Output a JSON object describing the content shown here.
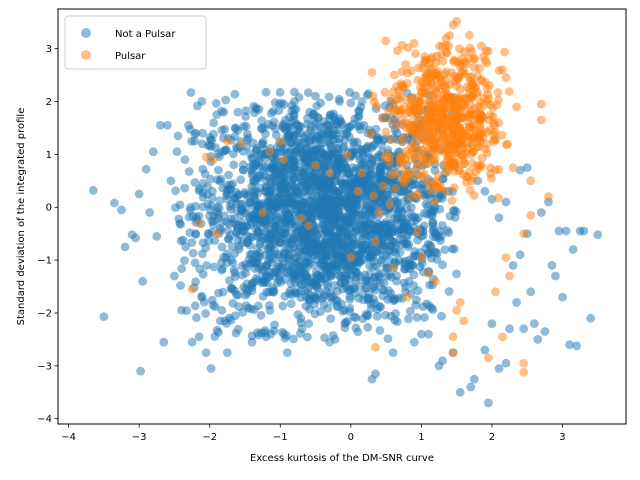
{
  "chart_data": {
    "type": "scatter",
    "title": "",
    "xlabel": "Excess kurtosis of the DM-SNR curve",
    "ylabel": "Standard deviation of the integrated profile",
    "xlim": [
      -4.15,
      3.9
    ],
    "ylim": [
      -4.1,
      3.75
    ],
    "xticks": [
      -4,
      -3,
      -2,
      -1,
      0,
      1,
      2,
      3
    ],
    "yticks": [
      -4,
      -3,
      -2,
      -1,
      0,
      1,
      2,
      3
    ],
    "grid": false,
    "legend_position": "top-left",
    "series": [
      {
        "name": "Not a Pulsar",
        "color": "#1f77b4",
        "main_cloud": {
          "x_range": [
            -2.3,
            1.3
          ],
          "y_range": [
            -2.3,
            2.0
          ],
          "x_center": -0.4,
          "y_center": -0.1
        },
        "points": [
          [
            -3.65,
            0.32
          ],
          [
            -3.5,
            -2.07
          ],
          [
            -3.35,
            0.08
          ],
          [
            -3.25,
            -0.05
          ],
          [
            -3.2,
            -0.75
          ],
          [
            -3.1,
            -0.52
          ],
          [
            -3.05,
            -0.58
          ],
          [
            -2.98,
            -3.1
          ],
          [
            -3.0,
            0.25
          ],
          [
            -2.95,
            -1.4
          ],
          [
            -2.9,
            0.72
          ],
          [
            -2.85,
            -0.1
          ],
          [
            -2.8,
            1.05
          ],
          [
            -2.75,
            -0.55
          ],
          [
            -2.7,
            1.55
          ],
          [
            -2.65,
            -2.55
          ],
          [
            -2.6,
            1.55
          ],
          [
            -2.55,
            0.5
          ],
          [
            -2.5,
            -1.3
          ],
          [
            -2.45,
            1.35
          ],
          [
            -2.4,
            -1.95
          ],
          [
            -2.35,
            0.9
          ],
          [
            -2.3,
            1.55
          ],
          [
            -2.25,
            -2.55
          ],
          [
            -2.2,
            -0.5
          ],
          [
            -2.15,
            -2.45
          ],
          [
            -2.1,
            1.4
          ],
          [
            -2.05,
            -2.75
          ],
          [
            -1.98,
            -3.05
          ],
          [
            -1.95,
            -1.85
          ],
          [
            -1.9,
            1.75
          ],
          [
            -1.85,
            -2.15
          ],
          [
            -1.8,
            1.8
          ],
          [
            -1.75,
            -2.75
          ],
          [
            -1.6,
            1.8
          ],
          [
            -1.4,
            -2.55
          ],
          [
            -1.3,
            1.85
          ],
          [
            -1.2,
            -2.45
          ],
          [
            -0.9,
            -2.75
          ],
          [
            -0.8,
            2.0
          ],
          [
            -0.5,
            2.1
          ],
          [
            -0.3,
            -2.55
          ],
          [
            0.25,
            2.15
          ],
          [
            0.3,
            -3.25
          ],
          [
            0.35,
            -3.15
          ],
          [
            0.6,
            -2.75
          ],
          [
            0.9,
            -2.55
          ],
          [
            1.0,
            -2.4
          ],
          [
            1.25,
            -3.0
          ],
          [
            1.3,
            -2.9
          ],
          [
            1.45,
            -2.75
          ],
          [
            1.55,
            -3.5
          ],
          [
            1.7,
            -3.4
          ],
          [
            1.75,
            -3.25
          ],
          [
            1.9,
            -2.7
          ],
          [
            1.95,
            -3.7
          ],
          [
            2.0,
            -2.2
          ],
          [
            2.1,
            -3.05
          ],
          [
            2.2,
            -2.95
          ],
          [
            2.25,
            -2.3
          ],
          [
            2.3,
            -1.1
          ],
          [
            2.35,
            -1.8
          ],
          [
            2.4,
            -0.9
          ],
          [
            2.45,
            -2.3
          ],
          [
            2.5,
            -0.5
          ],
          [
            2.55,
            -1.6
          ],
          [
            2.6,
            -2.2
          ],
          [
            2.65,
            -2.5
          ],
          [
            2.7,
            -0.1
          ],
          [
            2.75,
            -2.35
          ],
          [
            2.8,
            0.1
          ],
          [
            2.85,
            -1.1
          ],
          [
            2.9,
            -1.3
          ],
          [
            2.95,
            -0.45
          ],
          [
            3.0,
            -1.7
          ],
          [
            3.05,
            -0.45
          ],
          [
            3.1,
            -2.6
          ],
          [
            3.15,
            -0.8
          ],
          [
            3.2,
            -2.62
          ],
          [
            3.25,
            -0.45
          ],
          [
            3.3,
            -0.45
          ],
          [
            3.4,
            -2.1
          ],
          [
            3.5,
            -0.52
          ],
          [
            2.5,
            0.75
          ],
          [
            2.4,
            0.7
          ],
          [
            2.2,
            0.1
          ],
          [
            2.1,
            -0.2
          ],
          [
            1.9,
            0.3
          ],
          [
            1.8,
            0.5
          ],
          [
            2.0,
            0.15
          ]
        ]
      },
      {
        "name": "Pulsar",
        "color": "#ff7f0e",
        "main_cloud": {
          "x_range": [
            0.4,
            2.1
          ],
          "y_range": [
            0.3,
            3.1
          ],
          "x_center": 1.35,
          "y_center": 1.6
        },
        "points": [
          [
            1.5,
            3.52
          ],
          [
            1.45,
            3.45
          ],
          [
            1.4,
            3.25
          ],
          [
            1.35,
            3.2
          ],
          [
            1.3,
            3.05
          ],
          [
            1.85,
            3.05
          ],
          [
            1.95,
            2.95
          ],
          [
            1.75,
            2.8
          ],
          [
            1.5,
            2.75
          ],
          [
            1.05,
            2.85
          ],
          [
            0.3,
            2.55
          ],
          [
            0.45,
            1.7
          ],
          [
            2.15,
            2.6
          ],
          [
            2.2,
            2.45
          ],
          [
            2.35,
            1.9
          ],
          [
            2.7,
            1.95
          ],
          [
            2.7,
            1.65
          ],
          [
            2.3,
            0.75
          ],
          [
            2.55,
            0.5
          ],
          [
            2.8,
            0.2
          ],
          [
            2.55,
            -0.15
          ],
          [
            2.45,
            -0.5
          ],
          [
            2.2,
            -0.95
          ],
          [
            2.25,
            -1.3
          ],
          [
            2.05,
            -1.6
          ],
          [
            1.55,
            -1.8
          ],
          [
            1.6,
            -2.15
          ],
          [
            1.5,
            -1.95
          ],
          [
            1.45,
            -2.45
          ],
          [
            1.45,
            -2.75
          ],
          [
            1.95,
            -2.85
          ],
          [
            2.15,
            -2.45
          ],
          [
            2.45,
            -2.95
          ],
          [
            2.45,
            -3.12
          ],
          [
            0.35,
            -2.65
          ],
          [
            -1.75,
            1.25
          ],
          [
            -1.55,
            1.2
          ],
          [
            -2.05,
            0.95
          ],
          [
            -1.95,
            0.9
          ],
          [
            -2.15,
            -0.3
          ],
          [
            -1.9,
            -0.5
          ],
          [
            -1.15,
            1.05
          ],
          [
            -1.0,
            1.25
          ],
          [
            -0.95,
            0.9
          ],
          [
            -1.25,
            -0.1
          ],
          [
            -0.7,
            -0.2
          ],
          [
            -2.25,
            -1.55
          ],
          [
            -0.3,
            0.65
          ],
          [
            -0.05,
            1.0
          ],
          [
            0.1,
            0.3
          ],
          [
            0.4,
            -0.1
          ],
          [
            0.55,
            0.05
          ],
          [
            0.35,
            -0.65
          ],
          [
            0.7,
            0.95
          ],
          [
            0.85,
            0.2
          ],
          [
            0.95,
            -0.45
          ],
          [
            1.0,
            -0.95
          ],
          [
            1.1,
            -1.25
          ],
          [
            1.2,
            -1.4
          ],
          [
            0.6,
            -1.15
          ],
          [
            0.8,
            -1.7
          ],
          [
            -0.5,
            0.8
          ],
          [
            0.0,
            -0.95
          ],
          [
            0.15,
            0.65
          ],
          [
            -0.6,
            -0.35
          ]
        ]
      }
    ]
  }
}
